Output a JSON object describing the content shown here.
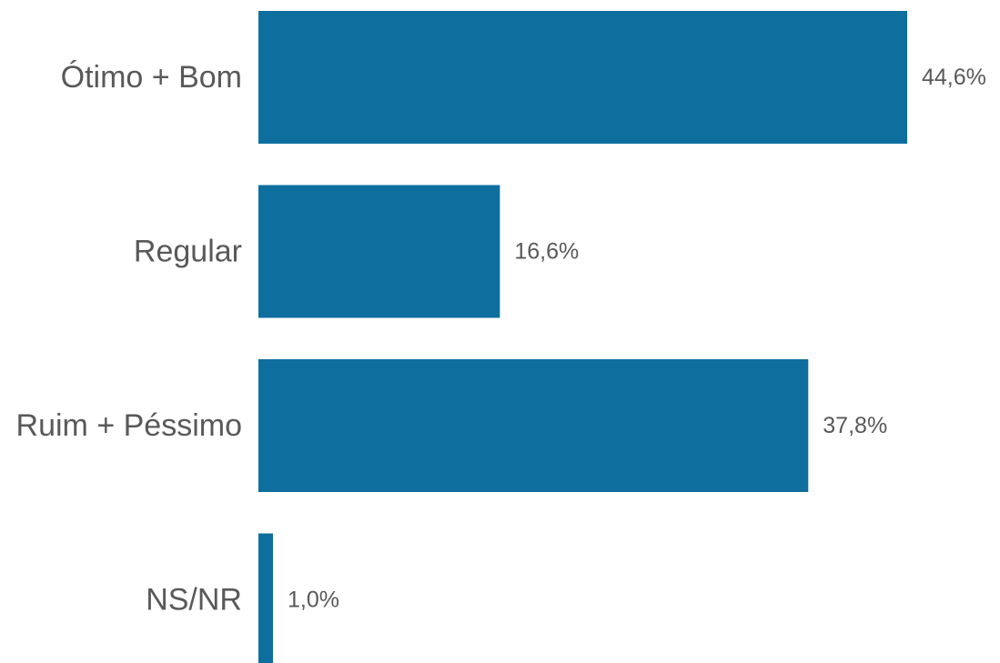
{
  "chart_data": {
    "type": "bar",
    "orientation": "horizontal",
    "categories": [
      "Ótimo + Bom",
      "Regular",
      "Ruim + Péssimo",
      "NS/NR"
    ],
    "values": [
      44.6,
      16.6,
      37.8,
      1.0
    ],
    "data_labels": [
      "44,6%",
      "16,6%",
      "37,8%",
      "1,0%"
    ],
    "bar_color": "#0e6f9f",
    "grid": false,
    "legend": "none",
    "xlim": [
      0,
      44.6
    ]
  }
}
